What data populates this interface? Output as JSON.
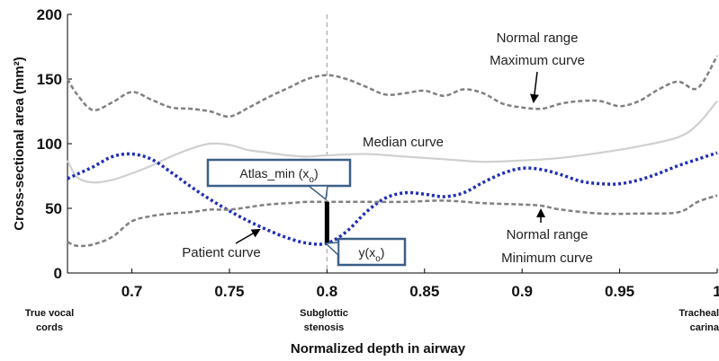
{
  "chart_data": {
    "type": "line",
    "xlabel": "Normalized depth in airway",
    "ylabel": "Cross-sectional area (mm²)",
    "xlim": [
      0.667,
      1.0
    ],
    "ylim": [
      0,
      200
    ],
    "x_ticks": [
      "0.7",
      "0.75",
      "0.8",
      "0.85",
      "0.9",
      "0.95",
      "1"
    ],
    "y_ticks": [
      "0",
      "50",
      "100",
      "150",
      "200"
    ],
    "grid": false,
    "series": [
      {
        "name": "Maximum curve",
        "style": "dashed",
        "color": "#808080",
        "x": [
          0.667,
          0.672,
          0.68,
          0.69,
          0.7,
          0.71,
          0.72,
          0.73,
          0.74,
          0.75,
          0.76,
          0.77,
          0.78,
          0.79,
          0.8,
          0.81,
          0.82,
          0.83,
          0.84,
          0.85,
          0.86,
          0.87,
          0.88,
          0.89,
          0.9,
          0.91,
          0.92,
          0.93,
          0.94,
          0.95,
          0.96,
          0.97,
          0.98,
          0.99,
          1.0
        ],
        "y": [
          150,
          138,
          126,
          132,
          140,
          134,
          128,
          127,
          125,
          121,
          128,
          136,
          143,
          150,
          153,
          150,
          144,
          138,
          139,
          141,
          137,
          142,
          139,
          131,
          128,
          127,
          131,
          133,
          133,
          129,
          133,
          142,
          148,
          143,
          168
        ]
      },
      {
        "name": "Median curve",
        "style": "solid",
        "color": "#d0d0d0",
        "x": [
          0.667,
          0.672,
          0.68,
          0.69,
          0.7,
          0.71,
          0.72,
          0.73,
          0.74,
          0.75,
          0.76,
          0.77,
          0.78,
          0.79,
          0.8,
          0.82,
          0.84,
          0.86,
          0.88,
          0.9,
          0.92,
          0.94,
          0.96,
          0.98,
          0.99,
          1.0
        ],
        "y": [
          87,
          74,
          70,
          72,
          77,
          83,
          90,
          96,
          100,
          99,
          95,
          93,
          91,
          90,
          91,
          92,
          90,
          88,
          86,
          87,
          89,
          93,
          98,
          105,
          115,
          133
        ]
      },
      {
        "name": "Patient curve",
        "style": "dotted",
        "color": "#1f2fb5",
        "x": [
          0.667,
          0.68,
          0.69,
          0.7,
          0.71,
          0.72,
          0.73,
          0.74,
          0.75,
          0.76,
          0.77,
          0.78,
          0.79,
          0.8,
          0.81,
          0.82,
          0.83,
          0.84,
          0.85,
          0.86,
          0.87,
          0.88,
          0.89,
          0.9,
          0.91,
          0.92,
          0.93,
          0.94,
          0.95,
          0.96,
          0.97,
          0.98,
          0.99,
          1.0
        ],
        "y": [
          73,
          82,
          90,
          92,
          88,
          78,
          67,
          57,
          48,
          40,
          33,
          27,
          23,
          23,
          32,
          47,
          58,
          62,
          61,
          59,
          62,
          70,
          77,
          81,
          80,
          76,
          71,
          69,
          69,
          72,
          77,
          83,
          88,
          93
        ]
      },
      {
        "name": "Minimum curve",
        "style": "dashed",
        "color": "#808080",
        "x": [
          0.667,
          0.672,
          0.68,
          0.69,
          0.7,
          0.71,
          0.72,
          0.73,
          0.74,
          0.75,
          0.76,
          0.77,
          0.78,
          0.79,
          0.8,
          0.82,
          0.84,
          0.86,
          0.88,
          0.9,
          0.91,
          0.92,
          0.94,
          0.96,
          0.98,
          0.99,
          1.0
        ],
        "y": [
          24,
          21,
          22,
          28,
          40,
          44,
          46,
          47,
          49,
          49,
          51,
          53,
          54,
          55,
          55,
          55,
          55,
          56,
          54,
          53,
          52,
          49,
          46,
          46,
          47,
          55,
          60
        ]
      }
    ],
    "vertical_reference": {
      "x": 0.8,
      "style": "dashed",
      "color": "#aaaaaa"
    },
    "stenosis_bar": {
      "x": 0.8,
      "y_low": 23,
      "y_high": 55
    },
    "annotations": [
      {
        "lines": [
          "Normal range",
          "Maximum curve"
        ],
        "arrow_target": [
          0.91,
          129
        ]
      },
      {
        "lines": [
          "Median curve"
        ]
      },
      {
        "lines": [
          "Patient curve"
        ],
        "arrow_target": [
          0.77,
          35
        ]
      },
      {
        "lines": [
          "Normal range",
          "Minimum curve"
        ],
        "arrow_target": [
          0.91,
          48
        ]
      }
    ],
    "callouts": [
      {
        "main": "Atlas_min (x",
        "sub": "o",
        "close": ")",
        "target": [
          0.8,
          55
        ]
      },
      {
        "main": "y(x",
        "sub": "o",
        "close": ")",
        "target": [
          0.8,
          23
        ]
      }
    ],
    "landmarks": [
      {
        "lines": [
          "True vocal",
          "cords"
        ],
        "x": 0.667
      },
      {
        "lines": [
          "Subglottic",
          "stenosis"
        ],
        "x": 0.8
      },
      {
        "lines": [
          "Tracheal",
          "carina"
        ],
        "x": 1.0
      }
    ]
  }
}
